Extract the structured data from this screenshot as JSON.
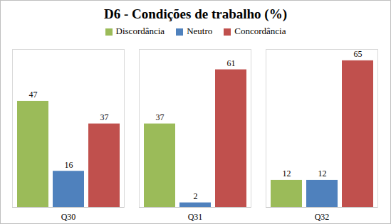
{
  "chart_data": {
    "type": "bar",
    "title": "D6 - Condições de trabalho (%)",
    "categories": [
      "Q30",
      "Q31",
      "Q32"
    ],
    "series": [
      {
        "name": "Discordância",
        "color": "#9bbb59",
        "values": [
          47,
          37,
          12
        ]
      },
      {
        "name": "Neutro",
        "color": "#4f81bd",
        "values": [
          16,
          2,
          12
        ]
      },
      {
        "name": "Concordância",
        "color": "#c0504d",
        "values": [
          37,
          61,
          65
        ]
      }
    ],
    "ylim": [
      0,
      70
    ],
    "legend": "top",
    "data_labels": true,
    "tick_labels": "x",
    "grid": false
  }
}
